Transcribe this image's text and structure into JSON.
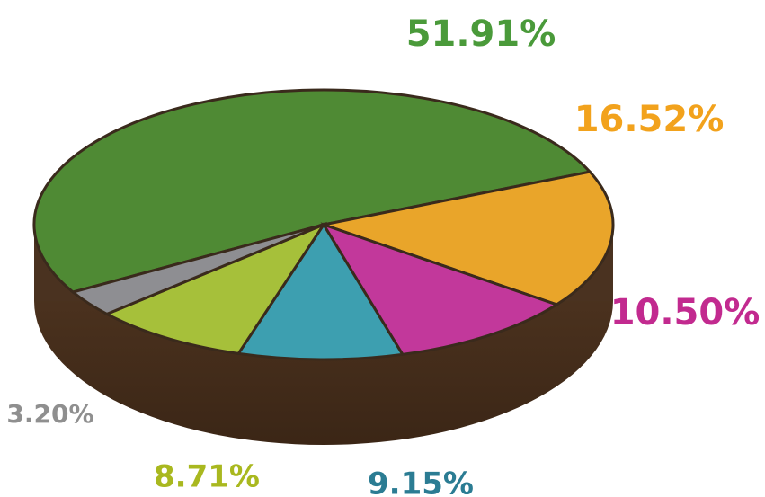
{
  "chart_data": {
    "type": "pie",
    "values": [
      51.91,
      16.52,
      10.5,
      9.15,
      8.71,
      3.2
    ],
    "value_labels": [
      "51.91%",
      "16.52%",
      "10.50%",
      "9.15%",
      "8.71%",
      "3.20%"
    ],
    "colors": [
      "#4f8a34",
      "#e9a52a",
      "#c2389b",
      "#3d9fb0",
      "#a6c03a",
      "#8e8e92"
    ],
    "label_colors": [
      "#4a9a3a",
      "#f2a21c",
      "#c22a8f",
      "#2b7c93",
      "#a9b81f",
      "#8f8f8f"
    ]
  }
}
